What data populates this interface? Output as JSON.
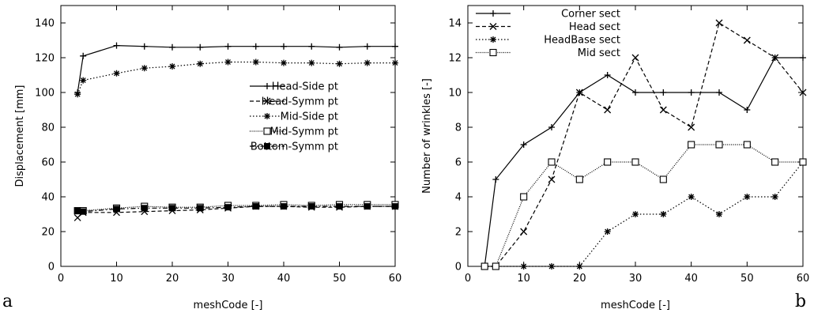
{
  "chart_data": [
    {
      "type": "line",
      "panel_label": "a",
      "xlabel": "meshCode [-]",
      "ylabel": "Displacement [mm]",
      "xlim": [
        0,
        60
      ],
      "ylim": [
        0,
        150
      ],
      "xticks": [
        0,
        10,
        20,
        30,
        40,
        50,
        60
      ],
      "yticks": [
        0,
        20,
        40,
        60,
        80,
        100,
        120,
        140
      ],
      "legend": "center-right",
      "grid": false,
      "series": [
        {
          "name": "Head-Side pt",
          "marker": "plus",
          "dash": "solid",
          "x": [
            3,
            4,
            10,
            15,
            20,
            25,
            30,
            35,
            40,
            45,
            50,
            55,
            60
          ],
          "y": [
            100,
            121,
            127,
            126.5,
            126,
            126,
            126.5,
            126.5,
            126.5,
            126.5,
            126,
            126.5,
            126.5
          ]
        },
        {
          "name": "Head-Symm pt",
          "marker": "x",
          "dash": "dashed",
          "x": [
            3,
            4,
            10,
            15,
            20,
            25,
            30,
            35,
            40,
            45,
            50,
            55,
            60
          ],
          "y": [
            28,
            31,
            31,
            31.5,
            32,
            32.5,
            33.5,
            34.5,
            34.5,
            34,
            34,
            34.5,
            34.5
          ]
        },
        {
          "name": "Mid-Side pt",
          "marker": "star",
          "dash": "dotted",
          "x": [
            3,
            4,
            10,
            15,
            20,
            25,
            30,
            35,
            40,
            45,
            50,
            55,
            60
          ],
          "y": [
            99,
            107,
            111,
            114,
            115,
            116.5,
            117.5,
            117.5,
            117,
            117,
            116.5,
            117,
            117
          ]
        },
        {
          "name": "Mid-Symm pt",
          "marker": "square",
          "dash": "fine-dotted",
          "x": [
            3,
            4,
            10,
            15,
            20,
            25,
            30,
            35,
            40,
            45,
            50,
            55,
            60
          ],
          "y": [
            32,
            32,
            33.5,
            34.5,
            34,
            34,
            35,
            35,
            35.5,
            35,
            35.5,
            35.5,
            35.5
          ]
        },
        {
          "name": "Bottom-Symm pt",
          "marker": "filled-square",
          "dash": "dash-dot",
          "x": [
            3,
            4,
            10,
            15,
            20,
            25,
            30,
            35,
            40,
            45,
            50,
            55,
            60
          ],
          "y": [
            32,
            31.5,
            33,
            33.5,
            33.5,
            33.5,
            34,
            34.5,
            34.5,
            34.5,
            34.5,
            34.5,
            34.5
          ]
        }
      ]
    },
    {
      "type": "line",
      "panel_label": "b",
      "xlabel": "meshCode [-]",
      "ylabel": "Number of wrinkles [-]",
      "xlim": [
        0,
        60
      ],
      "ylim": [
        0,
        15
      ],
      "xticks": [
        0,
        10,
        20,
        30,
        40,
        50,
        60
      ],
      "yticks": [
        0,
        2,
        4,
        6,
        8,
        10,
        12,
        14
      ],
      "legend": "top-left",
      "grid": false,
      "series": [
        {
          "name": "Corner sect",
          "marker": "plus",
          "dash": "solid",
          "x": [
            3,
            5,
            10,
            15,
            20,
            25,
            30,
            35,
            40,
            45,
            50,
            55,
            60
          ],
          "y": [
            0,
            5,
            7,
            8,
            10,
            11,
            10,
            10,
            10,
            10,
            9,
            12,
            12
          ]
        },
        {
          "name": "Head sect",
          "marker": "x",
          "dash": "dashed",
          "x": [
            3,
            5,
            10,
            15,
            20,
            25,
            30,
            35,
            40,
            45,
            50,
            55,
            60
          ],
          "y": [
            0,
            0,
            2,
            5,
            10,
            9,
            12,
            9,
            8,
            14,
            13,
            12,
            10
          ]
        },
        {
          "name": "HeadBase sect",
          "marker": "star",
          "dash": "dotted",
          "x": [
            3,
            5,
            10,
            15,
            20,
            25,
            30,
            35,
            40,
            45,
            50,
            55,
            60
          ],
          "y": [
            0,
            0,
            0,
            0,
            0,
            2,
            3,
            3,
            4,
            3,
            4,
            4,
            6
          ]
        },
        {
          "name": "Mid sect",
          "marker": "square",
          "dash": "fine-dotted",
          "x": [
            3,
            5,
            10,
            15,
            20,
            25,
            30,
            35,
            40,
            45,
            50,
            55,
            60
          ],
          "y": [
            0,
            0,
            4,
            6,
            5,
            6,
            6,
            5,
            7,
            7,
            7,
            6,
            6
          ]
        }
      ]
    }
  ]
}
